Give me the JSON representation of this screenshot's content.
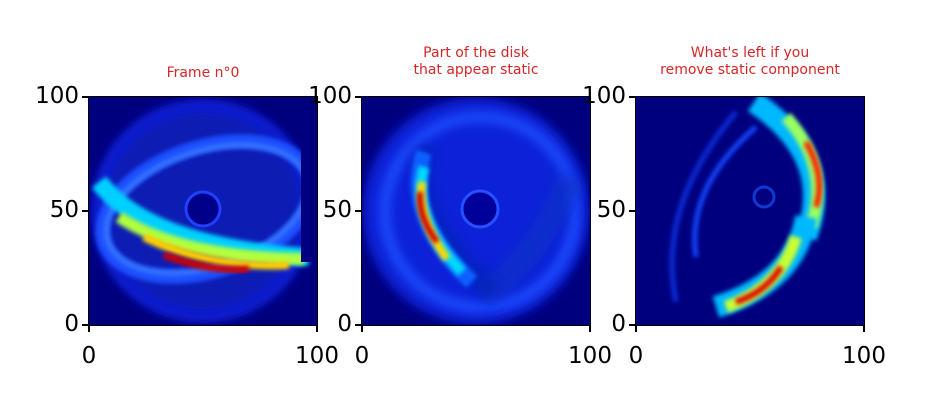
{
  "colors": {
    "title": "#d62728",
    "background": "#00007f"
  },
  "chart_data": [
    {
      "type": "heatmap",
      "title": "Frame n°0",
      "xlim": [
        0,
        100
      ],
      "ylim": [
        0,
        100
      ],
      "x_ticks": [
        "0",
        "100"
      ],
      "y_ticks": [
        "0",
        "50",
        "100"
      ],
      "colormap": "jet",
      "content": "disk"
    },
    {
      "type": "heatmap",
      "title": "Part of the disk\nthat appear static",
      "xlim": [
        0,
        100
      ],
      "ylim": [
        0,
        100
      ],
      "x_ticks": [
        "0",
        "100"
      ],
      "y_ticks": [
        "0",
        "50",
        "100"
      ],
      "colormap": "jet",
      "content": "static"
    },
    {
      "type": "heatmap",
      "title": "What's left if you\nremove static component",
      "xlim": [
        0,
        100
      ],
      "ylim": [
        0,
        100
      ],
      "x_ticks": [
        "0",
        "100"
      ],
      "y_ticks": [
        "0",
        "50",
        "100"
      ],
      "colormap": "jet",
      "content": "residual"
    }
  ]
}
